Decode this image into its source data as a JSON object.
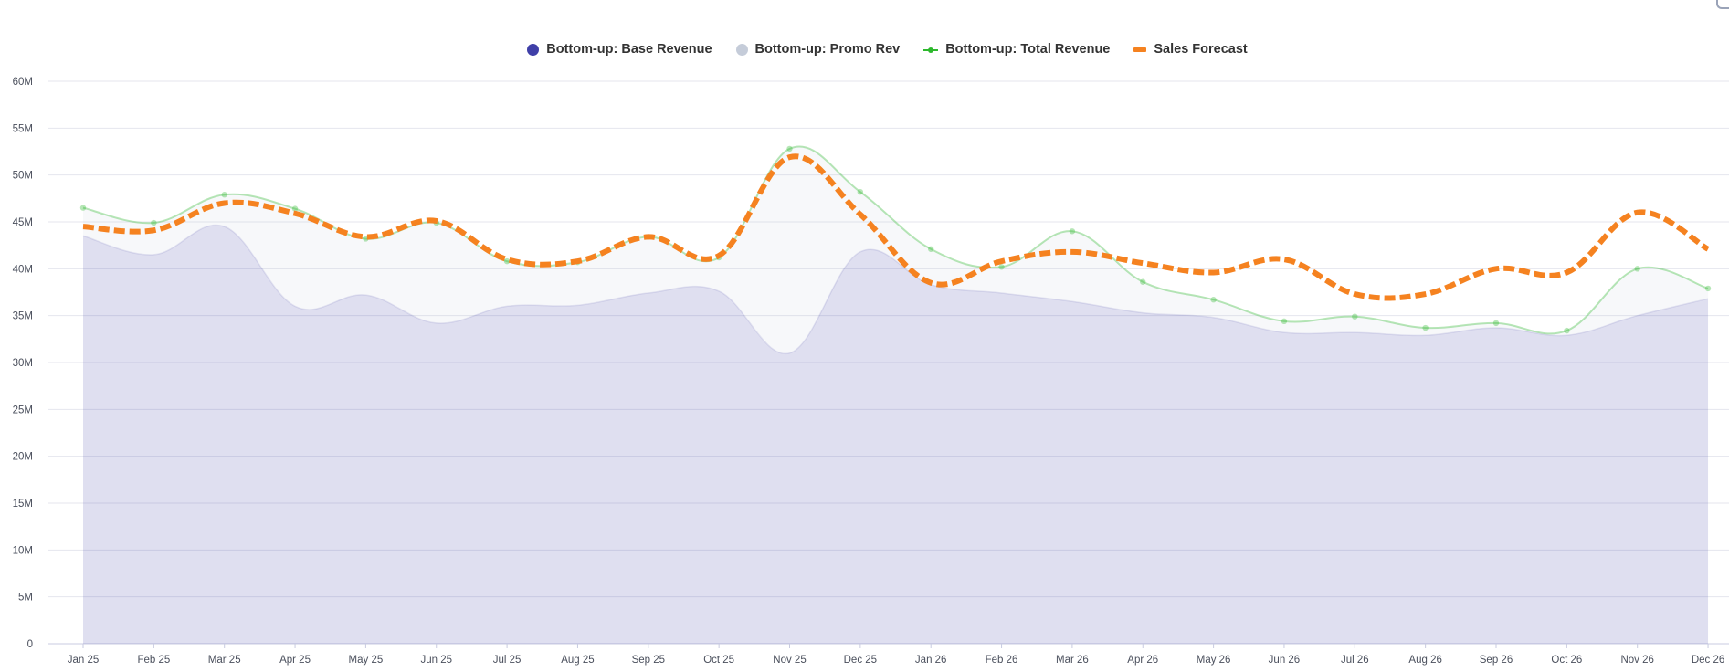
{
  "chart_data": {
    "type": "area",
    "categories": [
      "Jan 25",
      "Feb 25",
      "Mar 25",
      "Apr 25",
      "May 25",
      "Jun 25",
      "Jul 25",
      "Aug 25",
      "Sep 25",
      "Oct 25",
      "Nov 25",
      "Dec 25",
      "Jan 26",
      "Feb 26",
      "Mar 26",
      "Apr 26",
      "May 26",
      "Jun 26",
      "Jul 26",
      "Aug 26",
      "Sep 26",
      "Oct 26",
      "Nov 26",
      "Dec 26"
    ],
    "y_ticks": [
      {
        "value": 0,
        "label": "0"
      },
      {
        "value": 5000000,
        "label": "5M"
      },
      {
        "value": 10000000,
        "label": "10M"
      },
      {
        "value": 15000000,
        "label": "15M"
      },
      {
        "value": 20000000,
        "label": "20M"
      },
      {
        "value": 25000000,
        "label": "25M"
      },
      {
        "value": 30000000,
        "label": "30M"
      },
      {
        "value": 35000000,
        "label": "35M"
      },
      {
        "value": 40000000,
        "label": "40M"
      },
      {
        "value": 45000000,
        "label": "45M"
      },
      {
        "value": 50000000,
        "label": "50M"
      },
      {
        "value": 55000000,
        "label": "55M"
      },
      {
        "value": 60000000,
        "label": "60M"
      }
    ],
    "ylim": [
      0,
      60000000
    ],
    "grid": true,
    "legend_position": "top-center",
    "series": [
      {
        "name": "Bottom-up: Base Revenue",
        "kind": "area",
        "color": "#3f3fa8",
        "values": [
          43500000,
          41500000,
          44500000,
          36000000,
          37200000,
          34200000,
          36000000,
          36100000,
          37400000,
          37600000,
          31000000,
          41800000,
          38300000,
          37400000,
          36500000,
          35300000,
          34800000,
          33200000,
          33200000,
          32900000,
          33700000,
          32900000,
          35000000,
          36800000
        ]
      },
      {
        "name": "Bottom-up: Promo Rev",
        "kind": "area",
        "color": "#c5ccd9",
        "values": [
          3000000,
          3400000,
          3400000,
          10400000,
          6000000,
          10700000,
          4800000,
          4600000,
          6000000,
          3600000,
          21800000,
          6400000,
          3800000,
          2800000,
          7500000,
          3300000,
          1900000,
          1200000,
          1700000,
          800000,
          500000,
          500000,
          5000000,
          1100000
        ]
      },
      {
        "name": "Bottom-up: Total Revenue",
        "kind": "line",
        "color": "#2db82d",
        "values": [
          46500000,
          44900000,
          47900000,
          46400000,
          43200000,
          44900000,
          40800000,
          40700000,
          43400000,
          41200000,
          52800000,
          48200000,
          42100000,
          40200000,
          44000000,
          38600000,
          36700000,
          34400000,
          34900000,
          33700000,
          34200000,
          33400000,
          40000000,
          37900000
        ]
      },
      {
        "name": "Sales Forecast",
        "kind": "dashed-line",
        "color": "#f58220",
        "values": [
          44500000,
          44100000,
          47000000,
          45900000,
          43400000,
          45100000,
          41000000,
          40800000,
          43400000,
          41400000,
          51900000,
          45800000,
          38500000,
          40800000,
          41800000,
          40600000,
          39600000,
          41000000,
          37300000,
          37300000,
          40000000,
          39600000,
          46000000,
          42100000
        ]
      }
    ]
  }
}
